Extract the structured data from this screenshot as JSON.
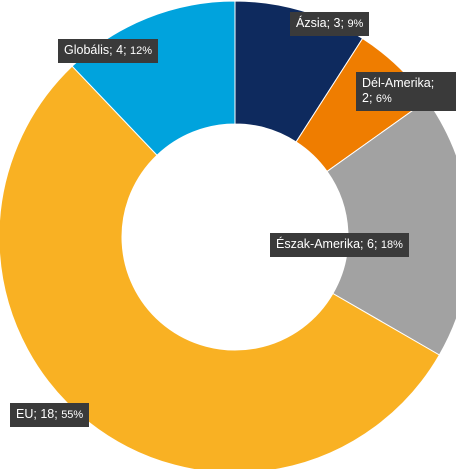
{
  "chart_data": {
    "type": "pie",
    "variant": "donut",
    "title": "",
    "categories": [
      "Ázsia",
      "Dél-Amerika",
      "Észak-Amerika",
      "EU",
      "Globális"
    ],
    "values": [
      3,
      2,
      6,
      18,
      4
    ],
    "percent_labels": [
      "9%",
      "6%",
      "18%",
      "55%",
      "12%"
    ],
    "colors": [
      "#0e2a5e",
      "#ef7d00",
      "#a2a2a2",
      "#f9b123",
      "#00a3dd"
    ],
    "labels": [
      {
        "name": "Ázsia",
        "value": "3",
        "pct": "9%"
      },
      {
        "name": "Dél-Amerika;",
        "value": "2",
        "pct": "6%",
        "wrapped": true
      },
      {
        "name": "Észak-Amerika",
        "value": "6",
        "pct": "18%"
      },
      {
        "name": "EU",
        "value": "18",
        "pct": "55%"
      },
      {
        "name": "Globális",
        "value": "4",
        "pct": "12%"
      }
    ]
  }
}
